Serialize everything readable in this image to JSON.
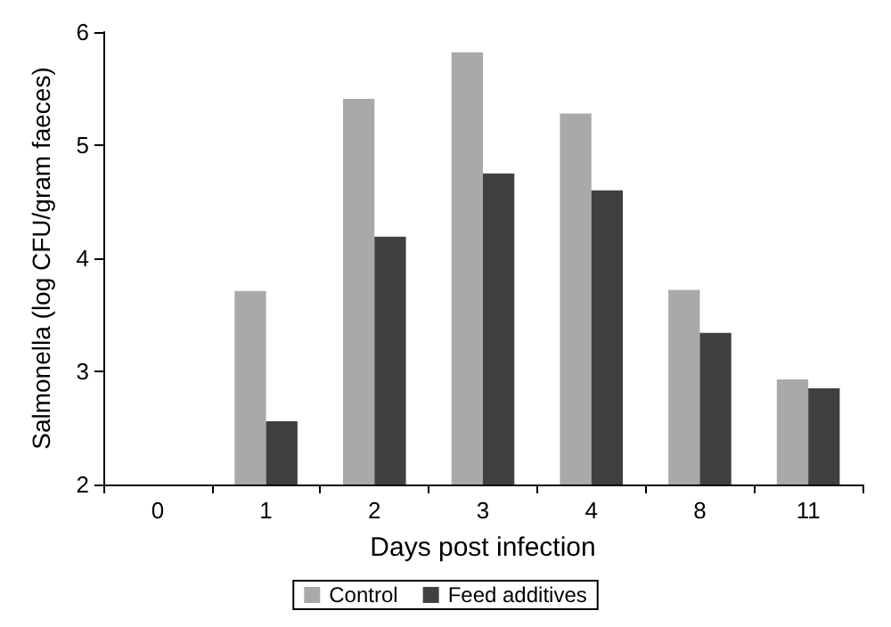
{
  "chart_data": {
    "type": "bar",
    "xlabel": "Days post infection",
    "ylabel": "Salmonella (log CFU/gram faeces)",
    "categories": [
      "0",
      "1",
      "2",
      "3",
      "4",
      "8",
      "11"
    ],
    "series": [
      {
        "name": "Control",
        "color": "#a9a9a9",
        "values": [
          null,
          3.71,
          5.41,
          5.82,
          5.28,
          3.72,
          2.93
        ]
      },
      {
        "name": "Feed additives",
        "color": "#404040",
        "values": [
          null,
          2.56,
          4.19,
          4.75,
          4.6,
          3.34,
          2.85
        ]
      }
    ],
    "ylim": [
      2,
      6
    ],
    "yticks": [
      2,
      3,
      4,
      5,
      6
    ],
    "grid": false,
    "legend": "bottom"
  }
}
